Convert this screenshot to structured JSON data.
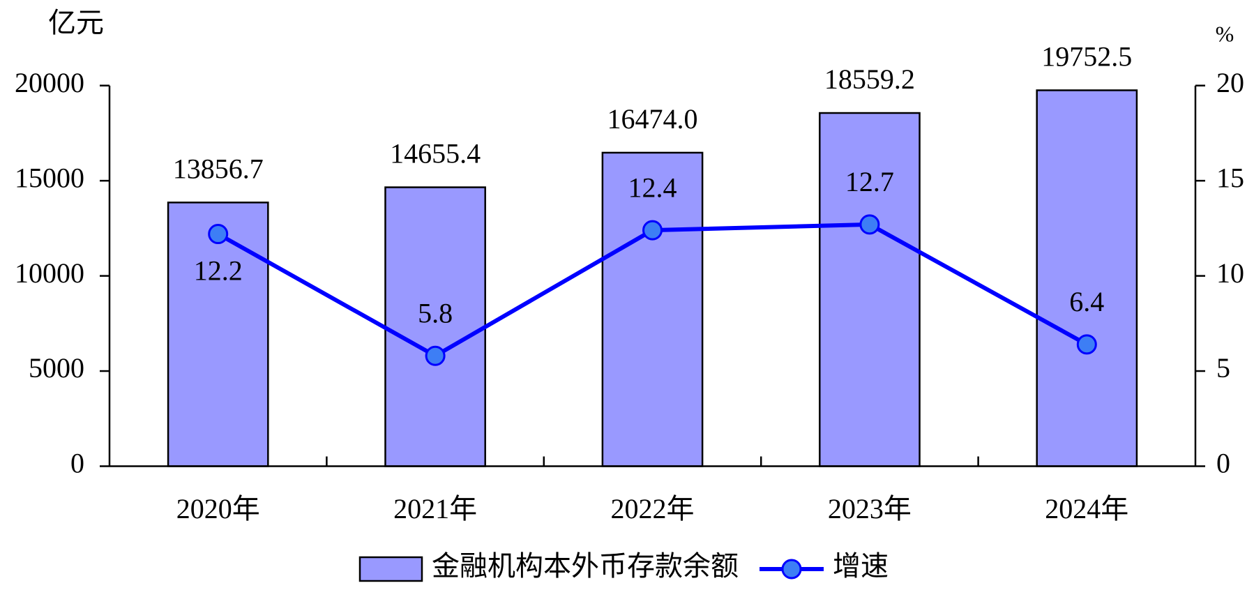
{
  "chart_data": {
    "type": "bar",
    "y_label": "亿元",
    "y2_label": "%",
    "categories": [
      "2020年",
      "2021年",
      "2022年",
      "2023年",
      "2024年"
    ],
    "series": [
      {
        "name": "金融机构本外币存款余额",
        "type": "bar",
        "color": "#9999ff",
        "values": [
          13856.7,
          14655.4,
          16474.0,
          18559.2,
          19752.5
        ],
        "value_labels": [
          "13856.7",
          "14655.4",
          "16474.0",
          "18559.2",
          "19752.5"
        ]
      },
      {
        "name": "增速",
        "type": "line",
        "axis": "y2",
        "color": "#0000ff",
        "marker_color": "#3d7ef5",
        "values": [
          12.2,
          5.8,
          12.4,
          12.7,
          6.4
        ]
      }
    ],
    "ylim": [
      0,
      20000
    ],
    "yticks": [
      0,
      5000,
      10000,
      15000,
      20000
    ],
    "y2lim": [
      0,
      20
    ],
    "y2ticks": [
      0,
      5,
      10,
      15,
      20
    ],
    "legend": "bottom"
  }
}
